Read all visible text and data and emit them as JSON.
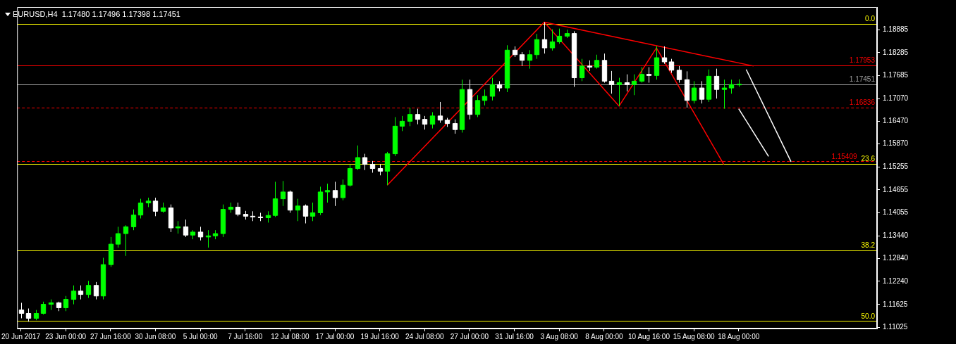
{
  "chart_data": {
    "type": "candlestick",
    "title": "EURUSD,H4  1.17480 1.17496 1.17398 1.17451",
    "colors": [
      "#ffffff",
      "#ffffff",
      "#00ff00",
      "#00ff00",
      "#00ff00",
      "#ffffff",
      "#00ff00",
      "#00ff00",
      "#ffffff",
      "#00ff00",
      "#ffffff",
      "#00ff00",
      "#00ff00",
      "#00ff00",
      "#00ff00",
      "#00ff00",
      "#00ff00",
      "#00ff00",
      "#ffffff",
      "#00ff00",
      "#ffffff",
      "#00ff00",
      "#ffffff",
      "#00ff00",
      "#ffffff",
      "#00ff00",
      "#00ff00",
      "#00ff00",
      "#00ff00",
      "#ffffff",
      "#ffffff",
      "#ffffff",
      "#ffffff",
      "#00ff00",
      "#00ff00",
      "#00ff00",
      "#ffffff",
      "#00ff00",
      "#ffffff",
      "#00ff00",
      "#00ff00",
      "#00ff00",
      "#ffffff",
      "#00ff00",
      "#00ff00",
      "#00ff00",
      "#ffffff",
      "#ffffff",
      "#ffffff",
      "#00ff00",
      "#00ff00",
      "#00ff00",
      "#00ff00",
      "#ffffff",
      "#ffffff",
      "#00ff00",
      "#ffffff",
      "#ffffff",
      "#ffffff",
      "#00ff00",
      "#ffffff",
      "#00ff00",
      "#00ff00",
      "#00ff00",
      "#ffffff",
      "#00ff00",
      "#ffffff",
      "#ffffff",
      "#00ff00",
      "#00ff00",
      "#ffffff",
      "#00ff00",
      "#00ff00",
      "#00ff00",
      "#ffffff",
      "#00ff00",
      "#ffffff",
      "#00ff00",
      "#ffffff",
      "#ffffff",
      "#00ff00",
      "#ffffff",
      "#00ff00",
      "#00ff00",
      "#ffffff",
      "#00ff00",
      "#ffffff",
      "#ffffff",
      "#ffffff",
      "#ffffff",
      "#00ff00",
      "#ffffff",
      "#00ff00",
      "#ffffff",
      "#00ff00",
      "#00ff00",
      "#00ff00",
      null,
      null,
      null,
      null,
      null,
      null,
      null,
      null,
      null,
      null,
      null,
      null,
      null,
      null,
      null,
      null,
      null,
      null
    ],
    "categories": [
      "20 Jun 2017",
      null,
      null,
      null,
      null,
      null,
      "23 Jun 00:00",
      null,
      null,
      null,
      null,
      null,
      "27 Jun 16:00",
      null,
      null,
      null,
      null,
      null,
      "30 Jun 08:00",
      null,
      null,
      null,
      null,
      null,
      "5 Jul 00:00",
      null,
      null,
      null,
      null,
      null,
      "7 Jul 16:00",
      null,
      null,
      null,
      null,
      null,
      "12 Jul 08:00",
      null,
      null,
      null,
      null,
      null,
      "17 Jul 00:00",
      null,
      null,
      null,
      null,
      null,
      "19 Jul 16:00",
      null,
      null,
      null,
      null,
      null,
      "24 Jul 08:00",
      null,
      null,
      null,
      null,
      null,
      "27 Jul 00:00",
      null,
      null,
      null,
      null,
      null,
      "31 Jul 16:00",
      null,
      null,
      null,
      null,
      null,
      "3 Aug 08:00",
      null,
      null,
      null,
      null,
      null,
      "8 Aug 00:00",
      null,
      null,
      null,
      null,
      null,
      "10 Aug 16:00",
      null,
      null,
      null,
      null,
      null,
      "15 Aug 08:00",
      null,
      null,
      null,
      null,
      null,
      "18 Aug 00:00",
      null,
      null,
      null,
      null,
      null,
      null,
      null,
      null,
      null,
      null,
      null,
      null,
      null,
      null,
      null,
      null,
      null,
      null
    ],
    "ohlc": [
      [
        1.1148,
        1.1167,
        1.1126,
        1.1139
      ],
      [
        1.1139,
        1.1152,
        1.1117,
        1.1126
      ],
      [
        1.1126,
        1.1148,
        1.1121,
        1.1139
      ],
      [
        1.1139,
        1.117,
        1.1136,
        1.1163
      ],
      [
        1.1163,
        1.1176,
        1.1148,
        1.1167
      ],
      [
        1.1167,
        1.117,
        1.1145,
        1.1154
      ],
      [
        1.1154,
        1.1185,
        1.1145,
        1.1176
      ],
      [
        1.1176,
        1.1213,
        1.1163,
        1.1198
      ],
      [
        1.1198,
        1.1213,
        1.1176,
        1.1189
      ],
      [
        1.1189,
        1.1225,
        1.118,
        1.1213
      ],
      [
        1.1213,
        1.1222,
        1.1176,
        1.1185
      ],
      [
        1.1185,
        1.1286,
        1.1176,
        1.1268
      ],
      [
        1.1268,
        1.1341,
        1.1262,
        1.1322
      ],
      [
        1.1322,
        1.1368,
        1.1313,
        1.135
      ],
      [
        1.135,
        1.1372,
        1.1291,
        1.1368
      ],
      [
        1.1368,
        1.1414,
        1.1359,
        1.1399
      ],
      [
        1.1399,
        1.1442,
        1.139,
        1.1431
      ],
      [
        1.1431,
        1.1445,
        1.142,
        1.1436
      ],
      [
        1.1436,
        1.1445,
        1.1396,
        1.1409
      ],
      [
        1.1409,
        1.1432,
        1.1405,
        1.1418
      ],
      [
        1.1418,
        1.1427,
        1.1354,
        1.1365
      ],
      [
        1.1365,
        1.1383,
        1.135,
        1.1368
      ],
      [
        1.1368,
        1.1387,
        1.1341,
        1.1346
      ],
      [
        1.1346,
        1.1359,
        1.1335,
        1.1354
      ],
      [
        1.1354,
        1.1368,
        1.1332,
        1.1341
      ],
      [
        1.1341,
        1.1359,
        1.1313,
        1.1344
      ],
      [
        1.1344,
        1.1359,
        1.1335,
        1.135
      ],
      [
        1.135,
        1.1427,
        1.1341,
        1.1414
      ],
      [
        1.1414,
        1.1432,
        1.1405,
        1.142
      ],
      [
        1.142,
        1.1432,
        1.1396,
        1.1401
      ],
      [
        1.1401,
        1.141,
        1.1387,
        1.1396
      ],
      [
        1.1396,
        1.1409,
        1.1383,
        1.1394
      ],
      [
        1.1394,
        1.1405,
        1.1383,
        1.1392
      ],
      [
        1.1392,
        1.1409,
        1.1379,
        1.1398
      ],
      [
        1.1398,
        1.1487,
        1.1394,
        1.1442
      ],
      [
        1.1442,
        1.1489,
        1.1423,
        1.146
      ],
      [
        1.146,
        1.1464,
        1.1405,
        1.1412
      ],
      [
        1.1412,
        1.1442,
        1.1383,
        1.1423
      ],
      [
        1.1423,
        1.1427,
        1.1377,
        1.1396
      ],
      [
        1.1396,
        1.1432,
        1.1383,
        1.1405
      ],
      [
        1.1405,
        1.1474,
        1.1399,
        1.146
      ],
      [
        1.146,
        1.1482,
        1.1432,
        1.1464
      ],
      [
        1.1464,
        1.1487,
        1.1423,
        1.1445
      ],
      [
        1.1445,
        1.1493,
        1.1438,
        1.1478
      ],
      [
        1.1478,
        1.1533,
        1.1474,
        1.1522
      ],
      [
        1.1522,
        1.1583,
        1.1518,
        1.1551
      ],
      [
        1.1551,
        1.1561,
        1.1518,
        1.1533
      ],
      [
        1.1533,
        1.1542,
        1.1511,
        1.1522
      ],
      [
        1.1522,
        1.1533,
        1.1504,
        1.1515
      ],
      [
        1.1515,
        1.1566,
        1.1478,
        1.1561
      ],
      [
        1.1561,
        1.1658,
        1.1555,
        1.1634
      ],
      [
        1.1634,
        1.1661,
        1.1621,
        1.1647
      ],
      [
        1.1647,
        1.1683,
        1.1634,
        1.1665
      ],
      [
        1.1665,
        1.168,
        1.1639,
        1.1652
      ],
      [
        1.1652,
        1.1661,
        1.1625,
        1.1639
      ],
      [
        1.1639,
        1.1671,
        1.1628,
        1.1661
      ],
      [
        1.1661,
        1.1698,
        1.1643,
        1.165
      ],
      [
        1.165,
        1.1656,
        1.1632,
        1.1641
      ],
      [
        1.1641,
        1.1652,
        1.1614,
        1.1625
      ],
      [
        1.1625,
        1.1757,
        1.1617,
        1.1731
      ],
      [
        1.1731,
        1.1757,
        1.1652,
        1.1665
      ],
      [
        1.1665,
        1.1716,
        1.1658,
        1.1702
      ],
      [
        1.1702,
        1.1731,
        1.1689,
        1.1713
      ],
      [
        1.1713,
        1.1762,
        1.1702,
        1.1744
      ],
      [
        1.1744,
        1.1753,
        1.1726,
        1.1735
      ],
      [
        1.1735,
        1.1848,
        1.1724,
        1.1835
      ],
      [
        1.1835,
        1.1845,
        1.1817,
        1.1823
      ],
      [
        1.1823,
        1.183,
        1.1793,
        1.1808
      ],
      [
        1.1808,
        1.1835,
        1.1786,
        1.1823
      ],
      [
        1.1823,
        1.1878,
        1.1812,
        1.1863
      ],
      [
        1.1863,
        1.1909,
        1.1826,
        1.1841
      ],
      [
        1.1841,
        1.189,
        1.1834,
        1.1857
      ],
      [
        1.1857,
        1.1892,
        1.1852,
        1.1872
      ],
      [
        1.1872,
        1.1889,
        1.1867,
        1.1879
      ],
      [
        1.1879,
        1.1885,
        1.1738,
        1.1762
      ],
      [
        1.1762,
        1.1812,
        1.1753,
        1.1793
      ],
      [
        1.1793,
        1.1808,
        1.178,
        1.179
      ],
      [
        1.179,
        1.1823,
        1.1786,
        1.1808
      ],
      [
        1.1808,
        1.1826,
        1.1749,
        1.1753
      ],
      [
        1.1753,
        1.178,
        1.172,
        1.1744
      ],
      [
        1.1744,
        1.1762,
        1.1687,
        1.1749
      ],
      [
        1.1749,
        1.1771,
        1.1726,
        1.1744
      ],
      [
        1.1744,
        1.1771,
        1.1716,
        1.1753
      ],
      [
        1.1753,
        1.179,
        1.1749,
        1.1771
      ],
      [
        1.1771,
        1.179,
        1.1749,
        1.1768
      ],
      [
        1.1768,
        1.1846,
        1.1757,
        1.1815
      ],
      [
        1.1815,
        1.1845,
        1.1799,
        1.1804
      ],
      [
        1.1804,
        1.1812,
        1.1775,
        1.1782
      ],
      [
        1.1782,
        1.1793,
        1.1749,
        1.1757
      ],
      [
        1.1757,
        1.1779,
        1.1683,
        1.1702
      ],
      [
        1.1702,
        1.1753,
        1.1694,
        1.1735
      ],
      [
        1.1735,
        1.1753,
        1.1694,
        1.1705
      ],
      [
        1.1705,
        1.1784,
        1.1698,
        1.1766
      ],
      [
        1.1766,
        1.1786,
        1.1707,
        1.1731
      ],
      [
        1.1731,
        1.1757,
        1.168,
        1.1735
      ],
      [
        1.1735,
        1.1757,
        1.172,
        1.1744
      ],
      [
        1.1744,
        1.1758,
        1.1738,
        1.1745
      ],
      null,
      null,
      null,
      null,
      null,
      null,
      null,
      null,
      null,
      null,
      null,
      null,
      null,
      null,
      null,
      null,
      null,
      null
    ],
    "series": [
      {
        "type": "line",
        "color": "#ff0000",
        "values": [
          null,
          null,
          null,
          null,
          null,
          null,
          null,
          null,
          null,
          null,
          null,
          null,
          null,
          null,
          null,
          null,
          null,
          null,
          null,
          null,
          null,
          null,
          null,
          null,
          null,
          null,
          null,
          null,
          null,
          null,
          null,
          null,
          null,
          null,
          null,
          null,
          null,
          null,
          null,
          null,
          null,
          null,
          null,
          null,
          null,
          null,
          null,
          null,
          null,
          1.1478,
          null,
          null,
          null,
          null,
          null,
          null,
          null,
          null,
          null,
          null,
          null,
          null,
          null,
          null,
          null,
          null,
          null,
          null,
          null,
          null,
          1.1909,
          null,
          null,
          null,
          null,
          null,
          null,
          null,
          null,
          null,
          1.1687,
          null,
          null,
          null,
          null,
          1.1841,
          null,
          null,
          null,
          null,
          null,
          null,
          null,
          null,
          1.1533,
          null,
          null,
          null,
          null,
          null,
          null,
          null,
          null,
          null,
          null,
          null,
          null,
          null,
          null,
          null,
          null,
          null,
          null,
          null,
          null
        ]
      },
      {
        "type": "line",
        "color": "#ff0000",
        "values": [
          null,
          null,
          null,
          null,
          null,
          null,
          null,
          null,
          null,
          null,
          null,
          null,
          null,
          null,
          null,
          null,
          null,
          null,
          null,
          null,
          null,
          null,
          null,
          null,
          null,
          null,
          null,
          null,
          null,
          null,
          null,
          null,
          null,
          null,
          null,
          null,
          null,
          null,
          null,
          null,
          null,
          null,
          null,
          null,
          null,
          null,
          null,
          null,
          null,
          null,
          null,
          null,
          null,
          null,
          null,
          null,
          null,
          null,
          null,
          null,
          null,
          null,
          null,
          null,
          null,
          null,
          null,
          null,
          null,
          null,
          1.1909,
          null,
          null,
          null,
          null,
          null,
          null,
          null,
          null,
          null,
          null,
          null,
          null,
          null,
          null,
          null,
          null,
          null,
          null,
          null,
          null,
          null,
          null,
          null,
          null,
          null,
          null,
          null,
          1.1793,
          null,
          null,
          null,
          null,
          null,
          null,
          null,
          null,
          null,
          null,
          null,
          null,
          null,
          null,
          null,
          null
        ]
      },
      {
        "type": "line",
        "color": "#ffffff",
        "values": [
          null,
          null,
          null,
          null,
          null,
          null,
          null,
          null,
          null,
          null,
          null,
          null,
          null,
          null,
          null,
          null,
          null,
          null,
          null,
          null,
          null,
          null,
          null,
          null,
          null,
          null,
          null,
          null,
          null,
          null,
          null,
          null,
          null,
          null,
          null,
          null,
          null,
          null,
          null,
          null,
          null,
          null,
          null,
          null,
          null,
          null,
          null,
          null,
          null,
          null,
          null,
          null,
          null,
          null,
          null,
          null,
          null,
          null,
          null,
          null,
          null,
          null,
          null,
          null,
          null,
          null,
          null,
          null,
          null,
          null,
          null,
          null,
          null,
          null,
          null,
          null,
          null,
          null,
          null,
          null,
          null,
          null,
          null,
          null,
          null,
          null,
          null,
          null,
          null,
          null,
          null,
          null,
          null,
          null,
          null,
          null,
          null,
          1.1784,
          null,
          null,
          null,
          null,
          null,
          1.154,
          null,
          null,
          null,
          null,
          null,
          null,
          null,
          null,
          null,
          null,
          null
        ]
      },
      {
        "type": "line",
        "color": "#ffffff",
        "values": [
          null,
          null,
          null,
          null,
          null,
          null,
          null,
          null,
          null,
          null,
          null,
          null,
          null,
          null,
          null,
          null,
          null,
          null,
          null,
          null,
          null,
          null,
          null,
          null,
          null,
          null,
          null,
          null,
          null,
          null,
          null,
          null,
          null,
          null,
          null,
          null,
          null,
          null,
          null,
          null,
          null,
          null,
          null,
          null,
          null,
          null,
          null,
          null,
          null,
          null,
          null,
          null,
          null,
          null,
          null,
          null,
          null,
          null,
          null,
          null,
          null,
          null,
          null,
          null,
          null,
          null,
          null,
          null,
          null,
          null,
          null,
          null,
          null,
          null,
          null,
          null,
          null,
          null,
          null,
          null,
          null,
          null,
          null,
          null,
          null,
          null,
          null,
          null,
          null,
          null,
          null,
          null,
          null,
          null,
          null,
          null,
          1.168,
          null,
          null,
          null,
          1.1554,
          null,
          null,
          null,
          null,
          null,
          null,
          null,
          null,
          null,
          null,
          null,
          null,
          null,
          null
        ]
      }
    ],
    "ylim": [
      1.1099,
      1.1949
    ],
    "yticks": [
      {
        "value": 1.11025,
        "label": "1.11025"
      },
      {
        "value": 1.11625,
        "label": "1.11625"
      },
      {
        "value": 1.1224,
        "label": "1.12240"
      },
      {
        "value": 1.1284,
        "label": "1.12840"
      },
      {
        "value": 1.1344,
        "label": "1.13440"
      },
      {
        "value": 1.14055,
        "label": "1.14055"
      },
      {
        "value": 1.14655,
        "label": "1.14655"
      },
      {
        "value": 1.15255,
        "label": "1.15255"
      },
      {
        "value": 1.1587,
        "label": "1.15870"
      },
      {
        "value": 1.1647,
        "label": "1.16470"
      },
      {
        "value": 1.1707,
        "label": "1.17070"
      },
      {
        "value": 1.17685,
        "label": "1.17685"
      },
      {
        "value": 1.18285,
        "label": "1.18285"
      },
      {
        "value": 1.18885,
        "label": "1.18885"
      }
    ],
    "ref_lines": [
      {
        "axis": "y",
        "value": 1.1905,
        "color": "#ffff00",
        "line_style": "solid"
      },
      {
        "axis": "y",
        "value": 1.1535,
        "color": "#ffff00",
        "line_style": "solid"
      },
      {
        "axis": "y",
        "value": 1.1306,
        "color": "#ffff00",
        "line_style": "solid"
      },
      {
        "axis": "y",
        "value": 1.1119,
        "color": "#ffff00",
        "line_style": "solid"
      },
      {
        "axis": "y",
        "value": 1.17953,
        "label": "1.17953",
        "color": "#ff0000",
        "line_style": "solid"
      },
      {
        "axis": "y",
        "value": 1.17451,
        "label": "1.17451",
        "color": "#a0a0a0",
        "line_style": "solid"
      },
      {
        "axis": "y",
        "value": 1.16836,
        "label": "1.16836",
        "color": "#ff0000",
        "line_style": "dashed"
      },
      {
        "axis": "y",
        "value": 1.15409,
        "label": "1.15409",
        "color": "#ff0000",
        "line_style": "dashed"
      }
    ],
    "annotations": [
      {
        "text": "0.0",
        "y": 1.1905
      },
      {
        "text": "23.6",
        "y": 1.1535
      },
      {
        "text": "38.2",
        "y": 1.1306
      },
      {
        "text": "50.0",
        "y": 1.1119
      }
    ]
  }
}
